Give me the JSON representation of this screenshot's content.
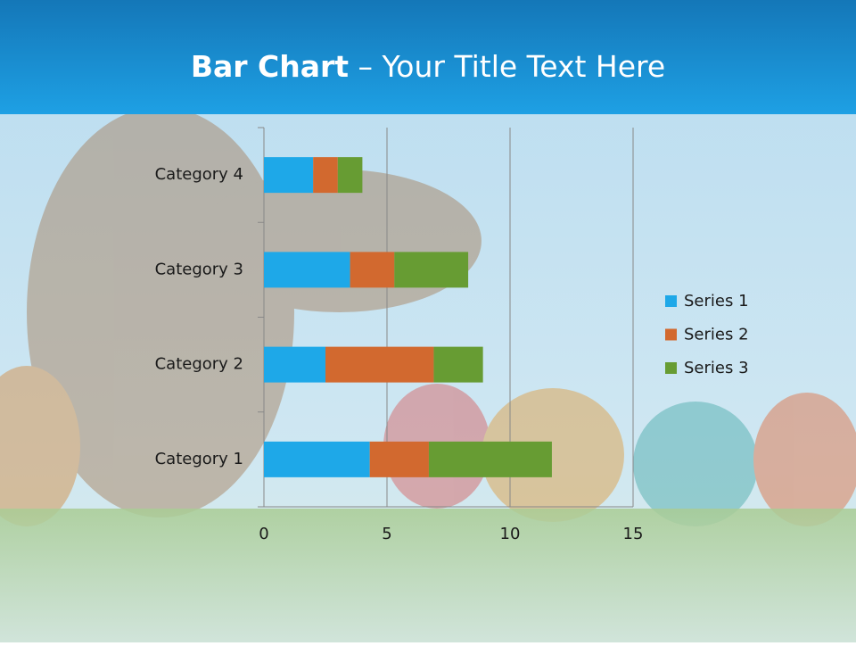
{
  "chart_data": {
    "type": "stacked-barh",
    "title": {
      "emphasis": "Bar Chart",
      "text": "– Your Title Text Here"
    },
    "categories": [
      "Category 1",
      "Category 2",
      "Category 3",
      "Category 4"
    ],
    "series": [
      {
        "name": "Series 1",
        "color": "#1ea8e8",
        "values": [
          4.3,
          2.5,
          3.5,
          2
        ]
      },
      {
        "name": "Series 2",
        "color": "#d2692f",
        "values": [
          2.4,
          4.4,
          1.8,
          1
        ]
      },
      {
        "name": "Series 3",
        "color": "#679c33",
        "values": [
          5,
          2,
          3,
          1
        ]
      }
    ],
    "xlim": [
      0,
      15
    ],
    "xticks": [
      0,
      5,
      10,
      15
    ],
    "grid": true,
    "legend": "right"
  }
}
